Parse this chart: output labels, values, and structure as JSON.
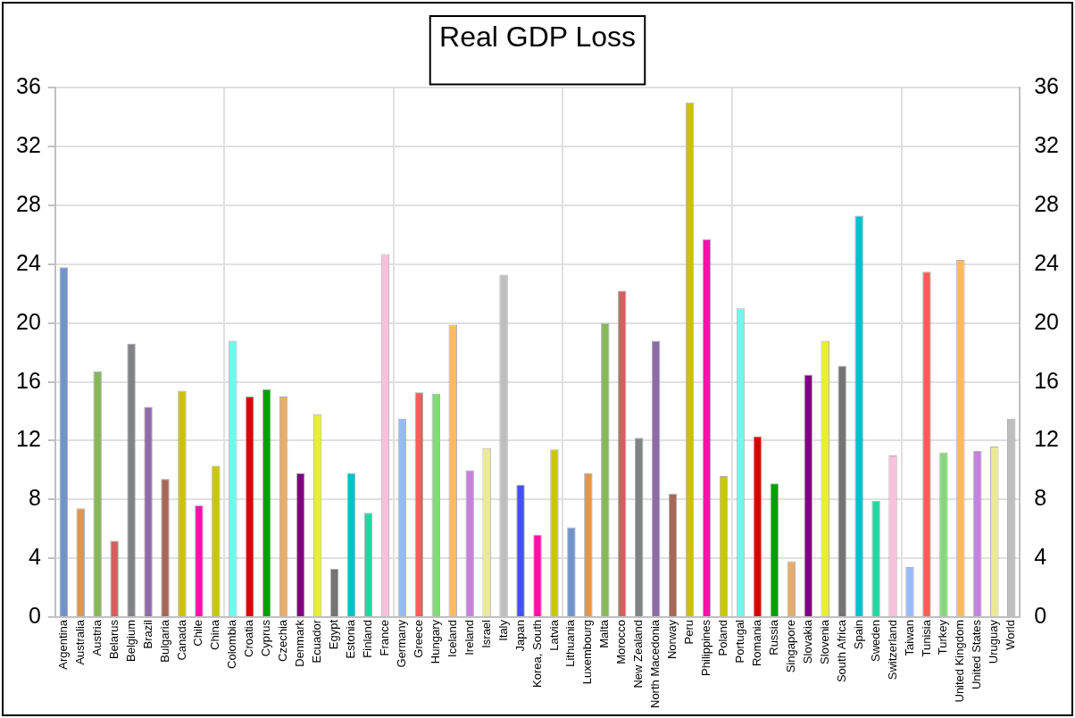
{
  "chart_data": {
    "type": "bar",
    "title": "Real GDP Loss",
    "categories": [
      "Argentina",
      "Australia",
      "Austria",
      "Belarus",
      "Belgium",
      "Brazil",
      "Bulgaria",
      "Canada",
      "Chile",
      "China",
      "Colombia",
      "Croatia",
      "Cyprus",
      "Czechia",
      "Denmark",
      "Ecuador",
      "Egypt",
      "Estonia",
      "Finland",
      "France",
      "Germany",
      "Greece",
      "Hungary",
      "Iceland",
      "Ireland",
      "Israel",
      "Italy",
      "Japan",
      "Korea, South",
      "Latvia",
      "Lithuania",
      "Luxembourg",
      "Malta",
      "Morocco",
      "New Zealand",
      "North Macedonia",
      "Norway",
      "Peru",
      "Philippines",
      "Poland",
      "Portugal",
      "Romania",
      "Russia",
      "Singapore",
      "Slovakia",
      "Slovenia",
      "South Africa",
      "Spain",
      "Sweden",
      "Switzerland",
      "Taiwan",
      "Tunisia",
      "Turkey",
      "United Kingdom",
      "United States",
      "Uruguay",
      "World"
    ],
    "values": [
      23.8,
      7.4,
      16.7,
      5.2,
      18.6,
      14.3,
      9.4,
      15.4,
      7.6,
      10.3,
      18.8,
      15.0,
      15.5,
      15.0,
      9.8,
      13.8,
      3.3,
      9.8,
      7.1,
      24.7,
      13.5,
      15.3,
      15.2,
      19.9,
      10.0,
      11.5,
      23.3,
      9.0,
      5.6,
      11.4,
      6.1,
      9.8,
      20.0,
      22.2,
      12.2,
      18.8,
      8.4,
      35.0,
      25.7,
      9.6,
      21.0,
      12.3,
      9.1,
      3.8,
      16.5,
      18.8,
      17.1,
      27.3,
      7.9,
      11.0,
      3.4,
      23.5,
      11.2,
      24.3,
      11.3,
      11.6,
      13.5
    ],
    "colors": [
      "#7292cc",
      "#e0964f",
      "#85b85a",
      "#d35f5f",
      "#7f8383",
      "#8e6aa8",
      "#a96756",
      "#cdbf14",
      "#ff0faa",
      "#c8c800",
      "#70f8ee",
      "#dd0000",
      "#00a000",
      "#e6ad6a",
      "#800080",
      "#e8f02c",
      "#747474",
      "#00c2cc",
      "#22d6a2",
      "#f8c0da",
      "#96bcf8",
      "#fd5a5a",
      "#80dc74",
      "#fdb862",
      "#c582dd",
      "#ece996",
      "#bebebe",
      "#4150f8",
      "#ff0faa",
      "#c8c800",
      "#7292cc",
      "#e0964f",
      "#85b85a",
      "#d35f5f",
      "#7f8383",
      "#8e6aa8",
      "#a96756",
      "#cdbf14",
      "#ff0faa",
      "#c8c800",
      "#70f8ee",
      "#dd0000",
      "#00a000",
      "#e6ad6a",
      "#800080",
      "#e8f02c",
      "#747474",
      "#00c2cc",
      "#22d6a2",
      "#f8c0da",
      "#96bcf8",
      "#fd5a5a",
      "#80dc74",
      "#fdb862",
      "#c582dd",
      "#ece996",
      "#bebebe"
    ],
    "ylim": [
      0,
      36
    ],
    "yticks": [
      0,
      4,
      8,
      12,
      16,
      20,
      24,
      28,
      32,
      36
    ],
    "y2lim": [
      0,
      36
    ],
    "y2ticks": [
      0,
      4,
      8,
      12,
      16,
      20,
      24,
      28,
      32,
      36
    ],
    "grid": true,
    "legend": false
  }
}
